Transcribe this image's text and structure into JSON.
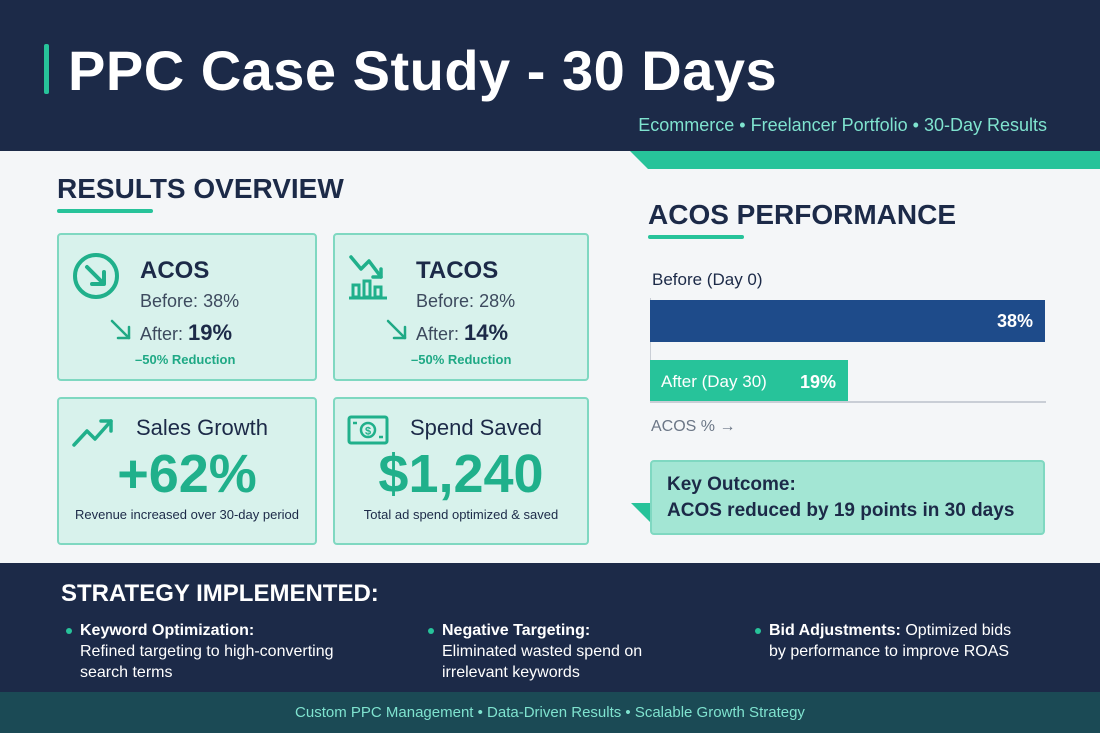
{
  "header": {
    "title": "PPC Case Study - 30 Days",
    "subtitle": "Ecommerce • Freelancer Portfolio • 30-Day Results"
  },
  "results": {
    "heading": "RESULTS OVERVIEW",
    "acos": {
      "name": "ACOS",
      "before_label": "Before:",
      "before_value": "38%",
      "after_label": "After:",
      "after_value": "19%",
      "reduction": "–50% Reduction"
    },
    "tacos": {
      "name": "TACOS",
      "before_label": "Before:",
      "before_value": "28%",
      "after_label": "After:",
      "after_value": "14%",
      "reduction": "–50% Reduction"
    },
    "sales": {
      "title": "Sales Growth",
      "value": "+62%",
      "caption": "Revenue increased over 30-day period"
    },
    "spend": {
      "title": "Spend Saved",
      "value": "$1,240",
      "caption": "Total ad spend optimized & saved"
    }
  },
  "chart_data": {
    "type": "bar",
    "title": "ACOS PERFORMANCE",
    "categories": [
      "Before (Day 0)",
      "After (Day 30)"
    ],
    "values": [
      38,
      19
    ],
    "value_labels": [
      "38%",
      "19%"
    ],
    "xlabel": "ACOS % →",
    "orientation": "horizontal",
    "colors": [
      "#1e4b8a",
      "#27c39a"
    ]
  },
  "outcome": {
    "title": "Key Outcome:",
    "text": "ACOS reduced by 19 points in 30 days"
  },
  "strategy": {
    "heading": "STRATEGY IMPLEMENTED:",
    "items": [
      {
        "title": "Keyword Optimization:",
        "line1": "Refined targeting to high-converting",
        "line2": "search terms"
      },
      {
        "title": "Negative Targeting:",
        "line1": "Eliminated wasted spend on",
        "line2": "irrelevant keywords"
      },
      {
        "title": "Bid Adjustments:",
        "rest": "Optimized bids",
        "line2": "by performance to improve ROAS"
      }
    ]
  },
  "footer": {
    "text": "Custom PPC Management • Data-Driven Results • Scalable Growth Strategy"
  },
  "icons": [
    "arrow-down-circle-icon",
    "trend-down-chart-icon",
    "trend-up-icon",
    "money-icon",
    "arrow-down-right-icon"
  ],
  "colors": {
    "navy": "#1c2a48",
    "teal": "#27c39a",
    "card_bg": "#d8f2ec",
    "bar_before": "#1e4b8a"
  }
}
